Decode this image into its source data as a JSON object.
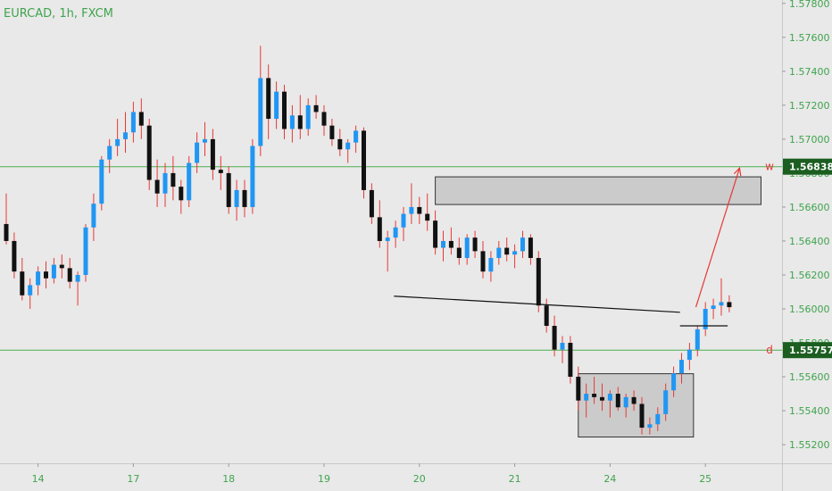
{
  "chart_data": {
    "type": "candlestick",
    "title": "EURCAD, 1h, FXCM",
    "price_range": [
      1.5509,
      1.5782
    ],
    "y_ticks": [
      "1.57800",
      "1.57600",
      "1.57400",
      "1.57200",
      "1.57000",
      "1.56800",
      "1.56600",
      "1.56400",
      "1.56200",
      "1.56000",
      "1.55800",
      "1.55600",
      "1.55400",
      "1.55200"
    ],
    "x_ticks": [
      "14",
      "17",
      "18",
      "19",
      "20",
      "21",
      "24",
      "25"
    ],
    "x_tick_index": [
      4,
      16,
      28,
      40,
      52,
      64,
      76,
      88
    ],
    "levels": [
      {
        "label": "w",
        "price_label": "1.56838",
        "price": 1.56838
      },
      {
        "label": "d",
        "price_label": "1.55757",
        "price": 1.55757
      }
    ],
    "zones": [
      {
        "x_range": [
          54.0,
          95.0
        ],
        "price_range": [
          1.56615,
          1.56778
        ]
      },
      {
        "x_range": [
          72.0,
          86.5
        ],
        "price_range": [
          1.55245,
          1.55618
        ]
      }
    ],
    "trendline": {
      "from": [
        48.8,
        1.56075
      ],
      "to": [
        84.8,
        1.5598
      ]
    },
    "support_segment": {
      "from": [
        84.8,
        1.559
      ],
      "to": [
        90.8,
        1.559
      ]
    },
    "projection": {
      "from": [
        86.8,
        1.5601
      ],
      "to": [
        92.3,
        1.5683
      ]
    },
    "candles": [
      [
        1.565,
        1.5668,
        1.5638,
        1.564
      ],
      [
        1.564,
        1.5645,
        1.5618,
        1.5622
      ],
      [
        1.5622,
        1.563,
        1.5605,
        1.5608
      ],
      [
        1.5608,
        1.5618,
        1.56,
        1.5614
      ],
      [
        1.5614,
        1.5625,
        1.5608,
        1.5622
      ],
      [
        1.5622,
        1.5628,
        1.5612,
        1.5618
      ],
      [
        1.5618,
        1.563,
        1.5615,
        1.5626
      ],
      [
        1.5626,
        1.5632,
        1.5618,
        1.5624
      ],
      [
        1.5624,
        1.563,
        1.5612,
        1.5616
      ],
      [
        1.5616,
        1.5622,
        1.5602,
        1.562
      ],
      [
        1.562,
        1.565,
        1.5616,
        1.5648
      ],
      [
        1.5648,
        1.5668,
        1.564,
        1.5662
      ],
      [
        1.5662,
        1.569,
        1.5658,
        1.5688
      ],
      [
        1.5688,
        1.57,
        1.568,
        1.5696
      ],
      [
        1.5696,
        1.5712,
        1.569,
        1.57
      ],
      [
        1.57,
        1.5716,
        1.5692,
        1.5704
      ],
      [
        1.5704,
        1.5722,
        1.5698,
        1.5716
      ],
      [
        1.5716,
        1.5724,
        1.57,
        1.5708
      ],
      [
        1.5708,
        1.5712,
        1.567,
        1.5676
      ],
      [
        1.5676,
        1.5688,
        1.566,
        1.5668
      ],
      [
        1.5668,
        1.5686,
        1.566,
        1.568
      ],
      [
        1.568,
        1.569,
        1.5664,
        1.5672
      ],
      [
        1.5672,
        1.5676,
        1.5656,
        1.5664
      ],
      [
        1.5664,
        1.569,
        1.566,
        1.5686
      ],
      [
        1.5686,
        1.5704,
        1.568,
        1.5698
      ],
      [
        1.5698,
        1.571,
        1.569,
        1.57
      ],
      [
        1.57,
        1.5706,
        1.5676,
        1.5682
      ],
      [
        1.5682,
        1.569,
        1.567,
        1.568
      ],
      [
        1.568,
        1.5684,
        1.5656,
        1.566
      ],
      [
        1.566,
        1.5676,
        1.5652,
        1.567
      ],
      [
        1.567,
        1.5676,
        1.5654,
        1.566
      ],
      [
        1.566,
        1.57,
        1.5656,
        1.5696
      ],
      [
        1.5696,
        1.5755,
        1.569,
        1.5736
      ],
      [
        1.5736,
        1.5744,
        1.57,
        1.5712
      ],
      [
        1.5712,
        1.5734,
        1.5706,
        1.5728
      ],
      [
        1.5728,
        1.5732,
        1.57,
        1.5706
      ],
      [
        1.5706,
        1.572,
        1.5698,
        1.5714
      ],
      [
        1.5714,
        1.5726,
        1.57,
        1.5706
      ],
      [
        1.5706,
        1.5724,
        1.5702,
        1.572
      ],
      [
        1.572,
        1.5726,
        1.5712,
        1.5716
      ],
      [
        1.5716,
        1.572,
        1.5702,
        1.5708
      ],
      [
        1.5708,
        1.5712,
        1.5696,
        1.57
      ],
      [
        1.57,
        1.5706,
        1.569,
        1.5694
      ],
      [
        1.5694,
        1.57,
        1.5686,
        1.5698
      ],
      [
        1.5698,
        1.5708,
        1.5692,
        1.5705
      ],
      [
        1.5705,
        1.5707,
        1.5665,
        1.567
      ],
      [
        1.567,
        1.5674,
        1.565,
        1.5654
      ],
      [
        1.5654,
        1.5664,
        1.5636,
        1.564
      ],
      [
        1.564,
        1.5646,
        1.5622,
        1.5642
      ],
      [
        1.5642,
        1.5652,
        1.5636,
        1.5648
      ],
      [
        1.5648,
        1.566,
        1.564,
        1.5656
      ],
      [
        1.5656,
        1.5674,
        1.565,
        1.566
      ],
      [
        1.566,
        1.5666,
        1.565,
        1.5656
      ],
      [
        1.5656,
        1.5668,
        1.5646,
        1.5652
      ],
      [
        1.5652,
        1.5658,
        1.5632,
        1.5636
      ],
      [
        1.5636,
        1.5646,
        1.5628,
        1.564
      ],
      [
        1.564,
        1.5648,
        1.5632,
        1.5636
      ],
      [
        1.5636,
        1.5642,
        1.5626,
        1.563
      ],
      [
        1.563,
        1.5644,
        1.5626,
        1.5642
      ],
      [
        1.5642,
        1.5646,
        1.563,
        1.5634
      ],
      [
        1.5634,
        1.564,
        1.5618,
        1.5622
      ],
      [
        1.5622,
        1.5634,
        1.5616,
        1.563
      ],
      [
        1.563,
        1.564,
        1.5626,
        1.5636
      ],
      [
        1.5636,
        1.5642,
        1.5628,
        1.5632
      ],
      [
        1.5632,
        1.5638,
        1.5624,
        1.5634
      ],
      [
        1.5634,
        1.5646,
        1.563,
        1.5642
      ],
      [
        1.5642,
        1.5644,
        1.5626,
        1.563
      ],
      [
        1.563,
        1.5634,
        1.5598,
        1.5602
      ],
      [
        1.5602,
        1.5606,
        1.5586,
        1.559
      ],
      [
        1.559,
        1.5596,
        1.5572,
        1.5576
      ],
      [
        1.5576,
        1.5584,
        1.5568,
        1.558
      ],
      [
        1.558,
        1.5584,
        1.5556,
        1.556
      ],
      [
        1.556,
        1.5566,
        1.554,
        1.5546
      ],
      [
        1.5546,
        1.5556,
        1.5536,
        1.555
      ],
      [
        1.555,
        1.556,
        1.5544,
        1.5548
      ],
      [
        1.5548,
        1.5556,
        1.554,
        1.5546
      ],
      [
        1.5546,
        1.5552,
        1.5536,
        1.555
      ],
      [
        1.555,
        1.5554,
        1.554,
        1.5542
      ],
      [
        1.5542,
        1.555,
        1.5536,
        1.5548
      ],
      [
        1.5548,
        1.5552,
        1.554,
        1.5544
      ],
      [
        1.5544,
        1.5548,
        1.5526,
        1.553
      ],
      [
        1.553,
        1.5536,
        1.5526,
        1.5532
      ],
      [
        1.5532,
        1.5542,
        1.5528,
        1.5538
      ],
      [
        1.5538,
        1.5556,
        1.5534,
        1.5552
      ],
      [
        1.5552,
        1.5566,
        1.5548,
        1.5562
      ],
      [
        1.5562,
        1.5574,
        1.5556,
        1.557
      ],
      [
        1.557,
        1.558,
        1.5564,
        1.5576
      ],
      [
        1.5576,
        1.559,
        1.5572,
        1.5588
      ],
      [
        1.5588,
        1.5604,
        1.5584,
        1.56
      ],
      [
        1.56,
        1.5606,
        1.5594,
        1.5602
      ],
      [
        1.5602,
        1.5618,
        1.5596,
        1.5604
      ],
      [
        1.5604,
        1.5608,
        1.5598,
        1.5601
      ]
    ]
  }
}
